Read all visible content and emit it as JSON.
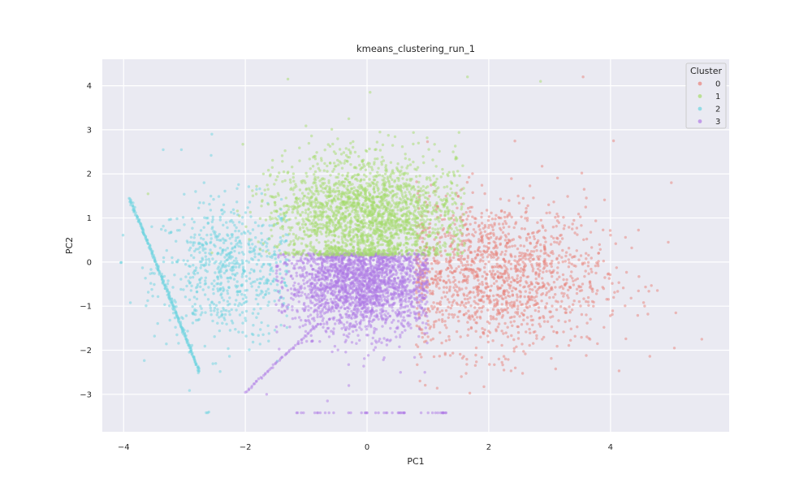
{
  "chart_data": {
    "type": "scatter",
    "title": "kmeans_clustering_run_1",
    "xlabel": "PC1",
    "ylabel": "PC2",
    "xlim": [
      -4.35,
      5.95
    ],
    "ylim": [
      -3.85,
      4.6
    ],
    "xticks": [
      -4,
      -2,
      0,
      2,
      4
    ],
    "yticks": [
      -3,
      -2,
      -1,
      0,
      1,
      2,
      3,
      4
    ],
    "grid": true,
    "background": "#eaeaf2",
    "legend": {
      "title": "Cluster",
      "placement": "top-right",
      "entries": [
        "0",
        "1",
        "2",
        "3"
      ]
    },
    "series": [
      {
        "name": "0",
        "color": "#e8827a",
        "cloud": {
          "x_center": 2.1,
          "y_center": -0.3,
          "x_spread": 0.9,
          "y_spread": 0.85,
          "count": 1500
        },
        "points": [
          [
            3.55,
            4.2
          ],
          [
            5.0,
            1.8
          ],
          [
            5.5,
            -1.75
          ],
          [
            5.05,
            -1.95
          ],
          [
            4.95,
            0.45
          ],
          [
            4.05,
            2.75
          ]
        ]
      },
      {
        "name": "1",
        "color": "#a6dc6e",
        "cloud": {
          "x_center": 0.0,
          "y_center": 1.05,
          "x_spread": 0.75,
          "y_spread": 0.65,
          "count": 2300
        },
        "points": [
          [
            -1.3,
            4.15
          ],
          [
            1.65,
            4.2
          ],
          [
            2.85,
            4.1
          ],
          [
            0.05,
            3.85
          ],
          [
            -0.3,
            3.25
          ]
        ]
      },
      {
        "name": "2",
        "color": "#6cd4df",
        "cloud": {
          "x_center": -2.3,
          "y_center": -0.2,
          "x_spread": 0.6,
          "y_spread": 0.8,
          "count": 700
        },
        "line": {
          "from": [
            -3.9,
            1.45
          ],
          "to": [
            -2.75,
            -2.5
          ],
          "count": 220
        },
        "points": [
          [
            -2.6,
            -3.4
          ],
          [
            -2.62,
            -3.42
          ],
          [
            -3.05,
            2.55
          ],
          [
            -3.35,
            2.55
          ],
          [
            -2.55,
            2.9
          ]
        ]
      },
      {
        "name": "3",
        "color": "#b07ce6",
        "cloud": {
          "x_center": -0.1,
          "y_center": -0.5,
          "x_spread": 0.6,
          "y_spread": 0.55,
          "count": 2200
        },
        "line": {
          "from": [
            -2.0,
            -2.95
          ],
          "to": [
            -0.8,
            -1.4
          ],
          "count": 55
        },
        "bottom_row": {
          "x_from": -1.2,
          "x_to": 1.3,
          "y": -3.42,
          "count": 45
        },
        "points": [
          [
            -0.65,
            -3.15
          ],
          [
            -1.65,
            -3.0
          ],
          [
            0.55,
            -2.5
          ],
          [
            0.95,
            -2.5
          ],
          [
            -0.3,
            -2.8
          ]
        ]
      }
    ]
  }
}
